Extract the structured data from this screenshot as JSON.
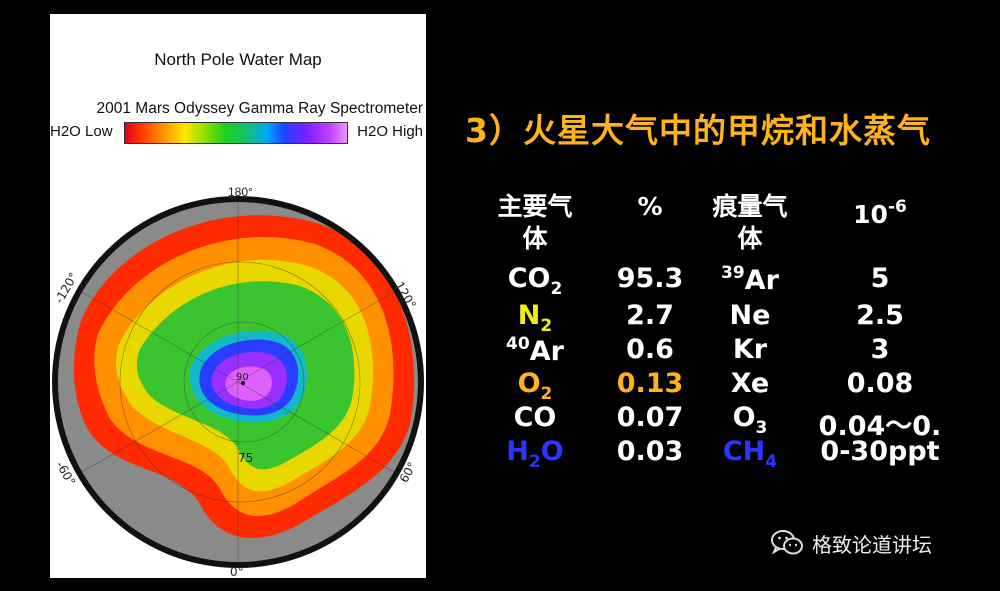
{
  "map": {
    "title": "North Pole Water Map",
    "subtitle": "2001 Mars Odyssey Gamma Ray Spectrometer",
    "legend_low": "H2O Low",
    "legend_high": "H2O High",
    "lon_labels": {
      "top": "180°",
      "left_top": "-120°",
      "right_top": "120°",
      "left_bottom": "-60°",
      "right_bottom": "60°",
      "bottom": "0°"
    },
    "lat_labels": {
      "pole": "90",
      "ring": "75"
    }
  },
  "slide": {
    "title": "3）火星大气中的甲烷和水蒸气",
    "headers": {
      "major_line1": "主要气",
      "major_line2": "体",
      "percent": "%",
      "trace_line1": "痕量气",
      "trace_line2": "体",
      "unit_base": "10",
      "unit_exp": "-6"
    },
    "rows": [
      {
        "major_base": "CO",
        "major_sub": "2",
        "percent": "95.3",
        "trace_sup": "39",
        "trace_base": "Ar",
        "value": "5"
      },
      {
        "major_base": "N",
        "major_sub": "2",
        "percent": "2.7",
        "trace_base": "Ne",
        "value": "2.5"
      },
      {
        "major_sup": "40",
        "major_base": "Ar",
        "percent": "0.6",
        "trace_base": "Kr",
        "value": "3"
      },
      {
        "major_base": "O",
        "major_sub": "2",
        "percent": "0.13",
        "trace_base": "Xe",
        "value": "0.08"
      },
      {
        "major_base": "CO",
        "percent": "0.07",
        "trace_base": "O",
        "trace_sub": "3",
        "value": "0.04～0."
      },
      {
        "major_base": "H",
        "major_sub": "2",
        "major_tail": "O",
        "percent": "0.03",
        "trace_base": "CH",
        "trace_sub": "4",
        "value": "0-30ppt"
      }
    ]
  },
  "watermark": {
    "text": "格致论道讲坛",
    "icon": "wechat-icon"
  },
  "colors": {
    "title": "#ffb21a",
    "yellow": "#f2ec1b",
    "blue": "#2a35ff",
    "background": "#000000"
  }
}
